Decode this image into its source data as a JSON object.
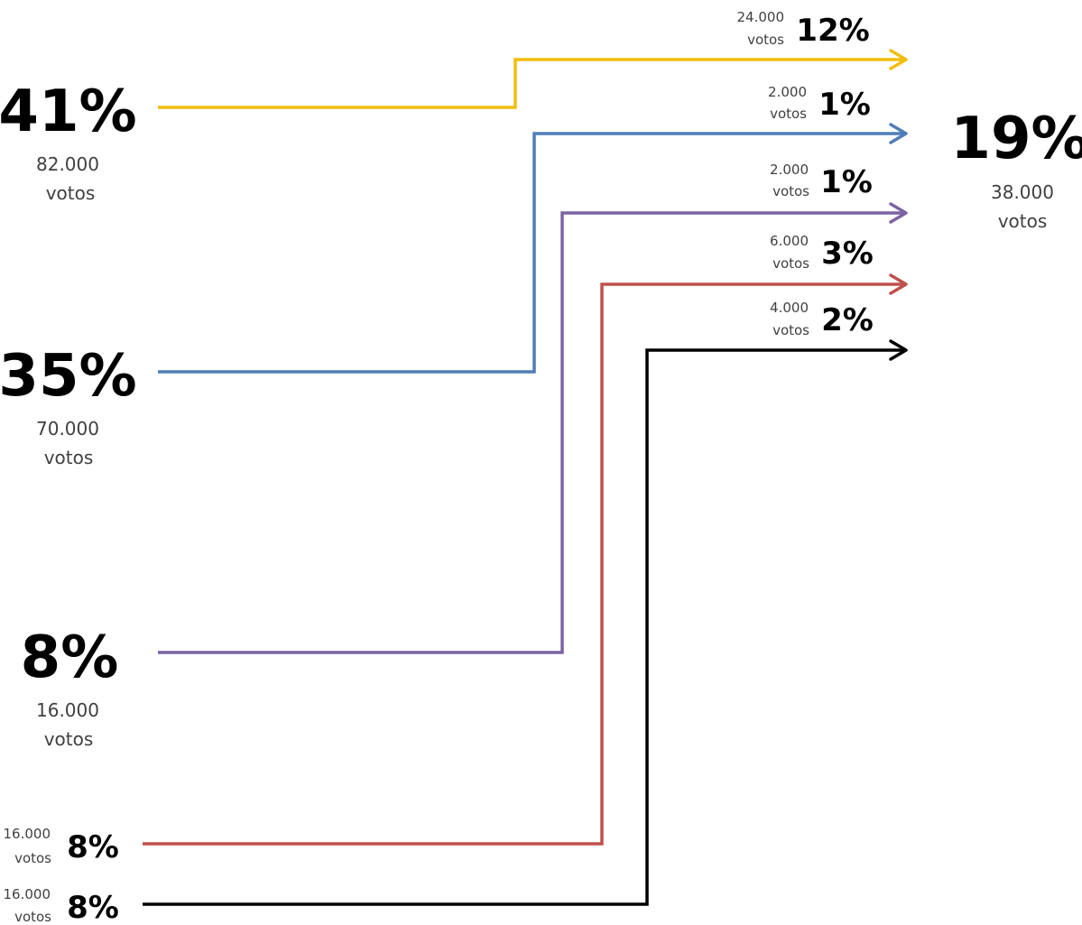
{
  "sources": [
    {
      "percent": "41%",
      "votes_value": "82.000",
      "votes_unit": "votos",
      "color": "#f2bd0c"
    },
    {
      "percent": "35%",
      "votes_value": "70.000",
      "votes_unit": "votos",
      "color": "#4f7db8"
    },
    {
      "percent": "8%",
      "votes_value": "16.000",
      "votes_unit": "votos",
      "color": "#7c63a3"
    },
    {
      "percent": "8%",
      "votes_value": "16.000",
      "votes_unit": "votos",
      "color": "#c0504d"
    },
    {
      "percent": "8%",
      "votes_value": "16.000",
      "votes_unit": "votos",
      "color": "#000000"
    }
  ],
  "flows": [
    {
      "percent": "12%",
      "votes_value": "24.000",
      "votes_unit": "votos",
      "color": "#f2bd0c"
    },
    {
      "percent": "1%",
      "votes_value": "2.000",
      "votes_unit": "votos",
      "color": "#4f7db8"
    },
    {
      "percent": "1%",
      "votes_value": "2.000",
      "votes_unit": "votos",
      "color": "#7c63a3"
    },
    {
      "percent": "3%",
      "votes_value": "6.000",
      "votes_unit": "votos",
      "color": "#c0504d"
    },
    {
      "percent": "2%",
      "votes_value": "4.000",
      "votes_unit": "votos",
      "color": "#000000"
    }
  ],
  "target": {
    "percent": "19%",
    "votes_value": "38.000",
    "votes_unit": "votos"
  }
}
